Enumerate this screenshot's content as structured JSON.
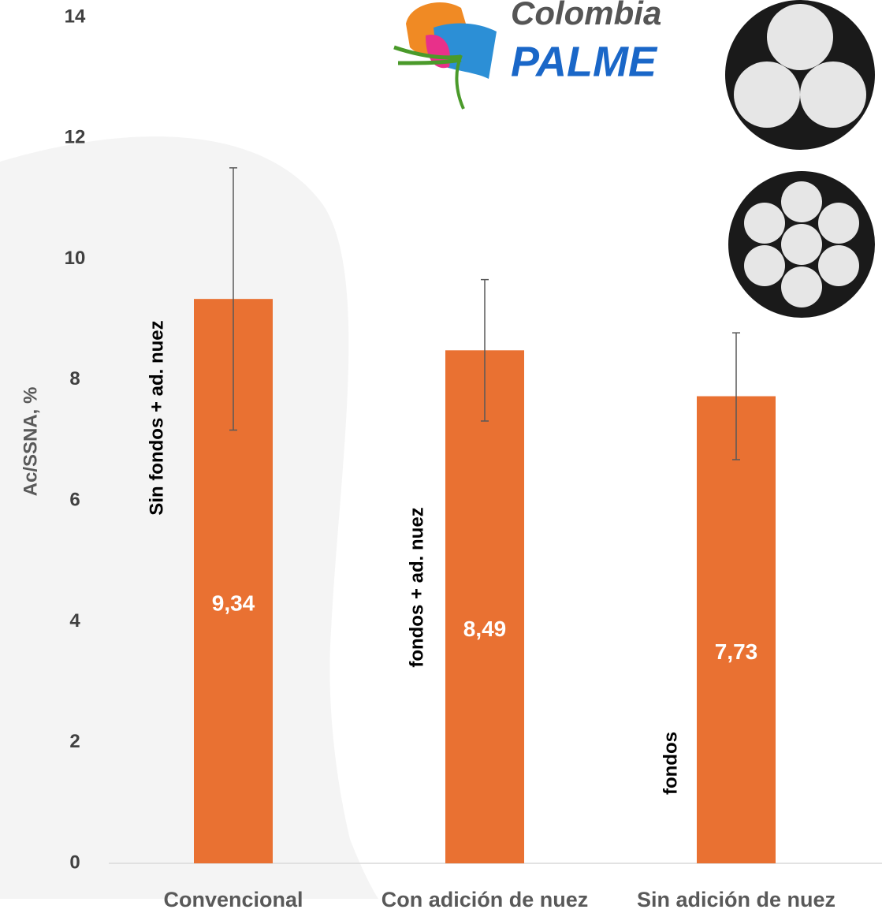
{
  "chart_data": {
    "type": "bar",
    "y_label": "Ac/SSNA, %",
    "categories": [
      "Convencional",
      "Con adición de nuez",
      "Sin adición de nuez"
    ],
    "values": [
      9.34,
      8.49,
      7.73
    ],
    "value_labels": [
      "9,34",
      "8,49",
      "7,73"
    ],
    "errors": [
      2.17,
      1.17,
      1.05
    ],
    "color": "#e97132",
    "ylim": [
      0,
      14
    ],
    "yticks": [
      0,
      2,
      4,
      6,
      8,
      10,
      12,
      14
    ],
    "annotations": [
      "Sin fondos + ad. nuez",
      "fondos + ad. nuez",
      "fondos"
    ]
  },
  "logo": {
    "line1": "Colombia",
    "line2": "PALME"
  }
}
